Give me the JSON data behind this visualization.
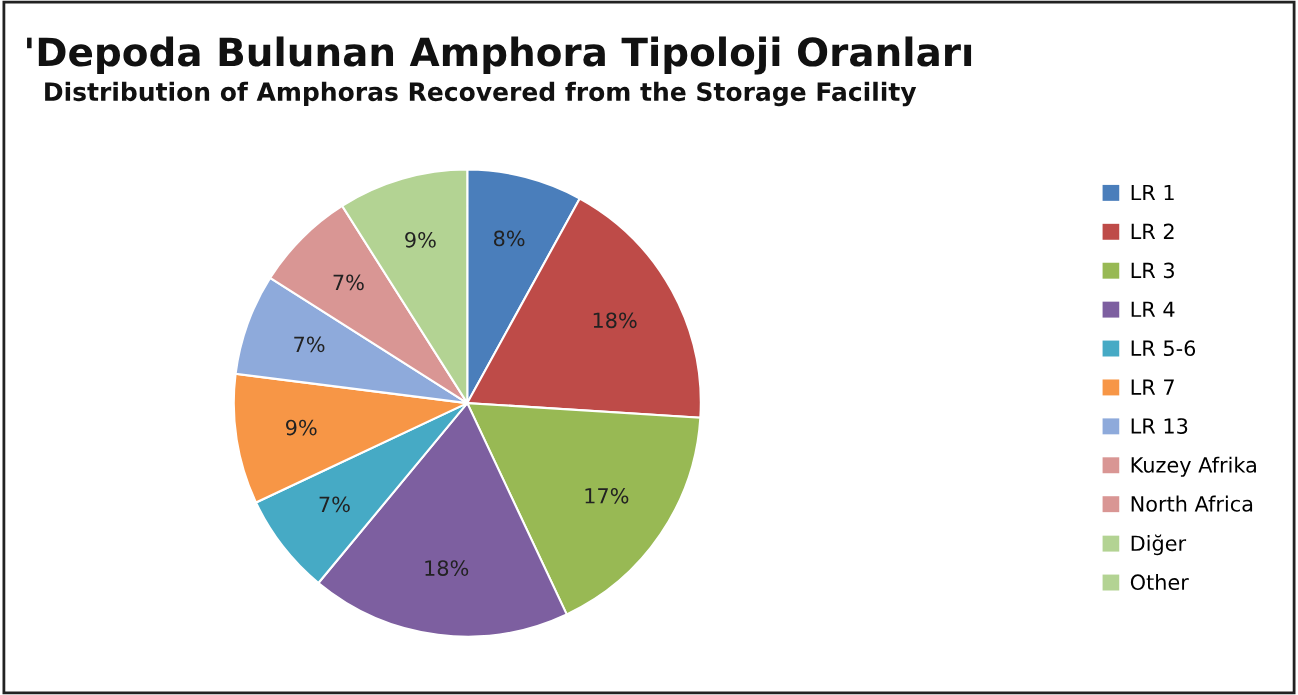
{
  "chart_data": {
    "type": "pie",
    "title": "'Depoda Bulunan Amphora Tipoloji Oranları",
    "subtitle": "Distribution of Amphoras Recovered from the Storage Facility",
    "categories": [
      "LR 1",
      "LR 2",
      "LR 3",
      "LR 4",
      "LR 5-6",
      "LR 7",
      "LR 13",
      "Kuzey Afrika\nNorth Africa",
      "Diğer\nOther"
    ],
    "values": [
      8,
      18,
      17,
      18,
      7,
      9,
      7,
      7,
      9
    ],
    "value_labels": [
      "8%",
      "18%",
      "17%",
      "18%",
      "7%",
      "9%",
      "7%",
      "7%",
      "9%"
    ],
    "colors": [
      "#4a7ebb",
      "#be4b48",
      "#98b954",
      "#7d5fa0",
      "#46aac5",
      "#f79646",
      "#8eaadb",
      "#d99694",
      "#b3d393"
    ],
    "legend": "right"
  }
}
